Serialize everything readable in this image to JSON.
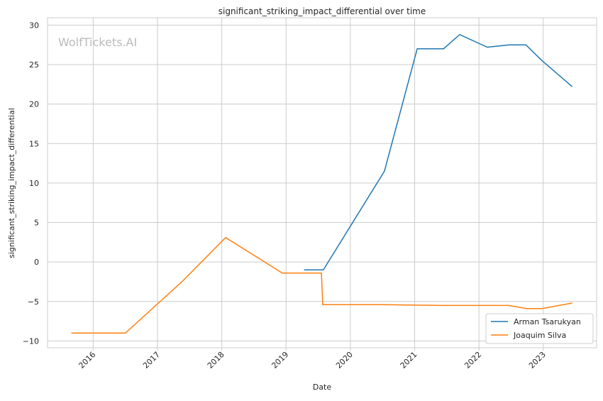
{
  "chart_data": {
    "type": "line",
    "title": "significant_striking_impact_differential over time",
    "xlabel": "Date",
    "ylabel": "significant_striking_impact_differential",
    "watermark": "WolfTickets.AI",
    "xlim": [
      2015.29,
      2023.83
    ],
    "ylim": [
      -10.86,
      30.93
    ],
    "xticks": [
      2016,
      2017,
      2018,
      2019,
      2020,
      2021,
      2022,
      2023
    ],
    "xtick_labels": [
      "2016",
      "2017",
      "2018",
      "2019",
      "2020",
      "2021",
      "2022",
      "2023"
    ],
    "yticks": [
      -10,
      -5,
      0,
      5,
      10,
      15,
      20,
      25,
      30
    ],
    "ytick_labels": [
      "−10",
      "−5",
      "0",
      "5",
      "10",
      "15",
      "20",
      "25",
      "30"
    ],
    "grid": true,
    "legend_position": "bottom-right",
    "series": [
      {
        "name": "Arman Tsarukyan",
        "color": "#1f77b4",
        "x": [
          2019.28,
          2019.58,
          2020.53,
          2021.04,
          2021.45,
          2021.7,
          2022.13,
          2022.47,
          2022.73,
          2022.98,
          2023.45
        ],
        "y": [
          -1.0,
          -1.0,
          11.5,
          27.0,
          27.0,
          28.8,
          27.2,
          27.5,
          27.5,
          25.5,
          22.2
        ]
      },
      {
        "name": "Joaquim Silva",
        "color": "#ff7f0e",
        "x": [
          2015.66,
          2016.5,
          2017.38,
          2018.06,
          2018.94,
          2019.55,
          2019.57,
          2020.5,
          2021.45,
          2022.46,
          2022.74,
          2022.98,
          2023.45
        ],
        "y": [
          -9.0,
          -9.0,
          -2.5,
          3.1,
          -1.4,
          -1.4,
          -5.4,
          -5.4,
          -5.5,
          -5.5,
          -5.9,
          -5.9,
          -5.2
        ]
      }
    ]
  }
}
